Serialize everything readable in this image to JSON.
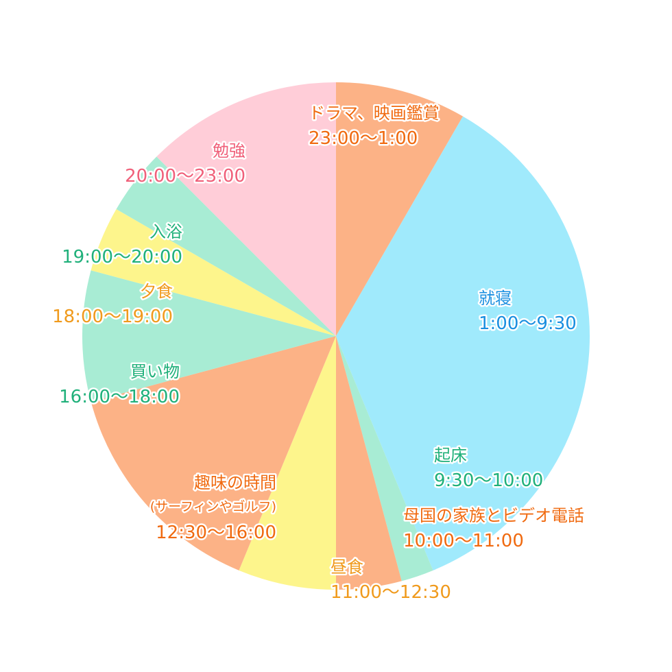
{
  "chart_data": {
    "type": "pie",
    "title": "",
    "start_time": "1:00",
    "direction": "clockwise",
    "slices": [
      {
        "name": "就寝",
        "time": "1:00〜9:30",
        "hours": 8.5,
        "color": "#a0eafc",
        "text_color": "#1a8fe0"
      },
      {
        "name": "起床",
        "time": "9:30〜10:00",
        "hours": 0.5,
        "color": "#a8ecd4",
        "text_color": "#1fb07a"
      },
      {
        "name": "母国の家族とビデオ電話",
        "time": "10:00〜11:00",
        "hours": 1,
        "color": "#fcb286",
        "text_color": "#f06a10"
      },
      {
        "name": "昼食",
        "time": "11:00〜12:30",
        "hours": 1.5,
        "color": "#fdf58c",
        "text_color": "#f09a1c"
      },
      {
        "name": "趣味の時間",
        "sub": "(サーフィンやゴルフ)",
        "time": "12:30〜16:00",
        "hours": 3.5,
        "color": "#fcb286",
        "text_color": "#f06a10"
      },
      {
        "name": "買い物",
        "time": "16:00〜18:00",
        "hours": 2,
        "color": "#a8ecd4",
        "text_color": "#1fb07a"
      },
      {
        "name": "夕食",
        "time": "18:00〜19:00",
        "hours": 1,
        "color": "#fdf58c",
        "text_color": "#f09a1c"
      },
      {
        "name": "入浴",
        "time": "19:00〜20:00",
        "hours": 1,
        "color": "#a8ecd4",
        "text_color": "#1fb07a"
      },
      {
        "name": "勉強",
        "time": "20:00〜23:00",
        "hours": 3,
        "color": "#ffcdd8",
        "text_color": "#f0607a"
      },
      {
        "name": "ドラマ、映画鑑賞",
        "time": "23:00〜1:00",
        "hours": 2,
        "color": "#fcb286",
        "text_color": "#f06a10"
      }
    ]
  }
}
